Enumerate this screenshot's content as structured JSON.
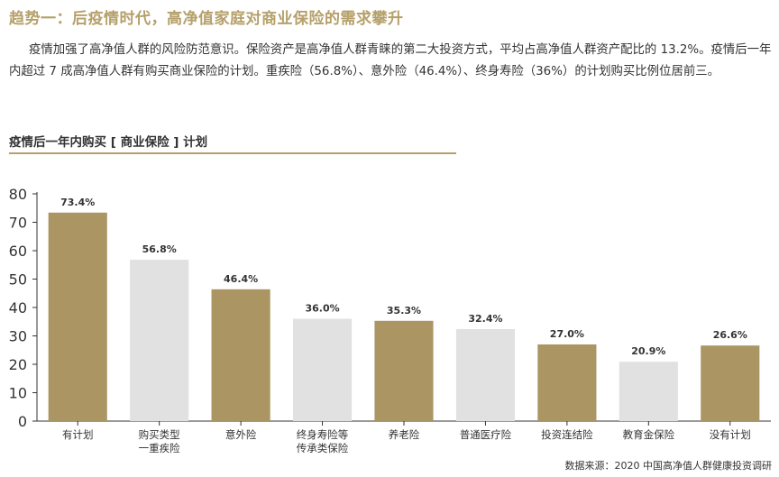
{
  "headline": "趋势一：后疫情时代，高净值家庭对商业保险的需求攀升",
  "paragraph": "疫情加强了高净值人群的风险防范意识。保险资产是高净值人群青睐的第二大投资方式，平均占高净值人群资产配比的 13.2%。疫情后一年内超过 7 成高净值人群有购买商业保险的计划。重疾险（56.8%）、意外险（46.4%）、终身寿险（36%）的计划购买比例位居前三。",
  "chart_subtitle": "疫情后一年内购买 [ 商业保险 ] 计划",
  "source": "数据来源：2020 中国高净值人群健康投资调研",
  "colors": {
    "gold": "#ab9563",
    "gray": "#e1e1e1",
    "accent": "#b5a06a"
  },
  "chart_data": {
    "type": "bar",
    "categories": [
      "有计划",
      "购买类型\n一重疾险",
      "意外险",
      "终身寿险等\n传承类保险",
      "养老险",
      "普通医疗险",
      "投资连结险",
      "教育金保险",
      "没有计划"
    ],
    "values": [
      73.4,
      56.8,
      46.4,
      36.0,
      35.3,
      32.4,
      27.0,
      20.9,
      26.6
    ],
    "value_labels": [
      "73.4%",
      "56.8%",
      "46.4%",
      "36.0%",
      "35.3%",
      "32.4%",
      "27.0%",
      "20.9%",
      "26.6%"
    ],
    "bar_colors": [
      "gold",
      "gray",
      "gold",
      "gray",
      "gold",
      "gray",
      "gold",
      "gray",
      "gold"
    ],
    "ylim": [
      0,
      80
    ],
    "yticks": [
      0,
      10,
      20,
      30,
      40,
      50,
      60,
      70,
      80
    ],
    "title": "",
    "xlabel": "",
    "ylabel": "",
    "grid": false,
    "legend": "none"
  }
}
